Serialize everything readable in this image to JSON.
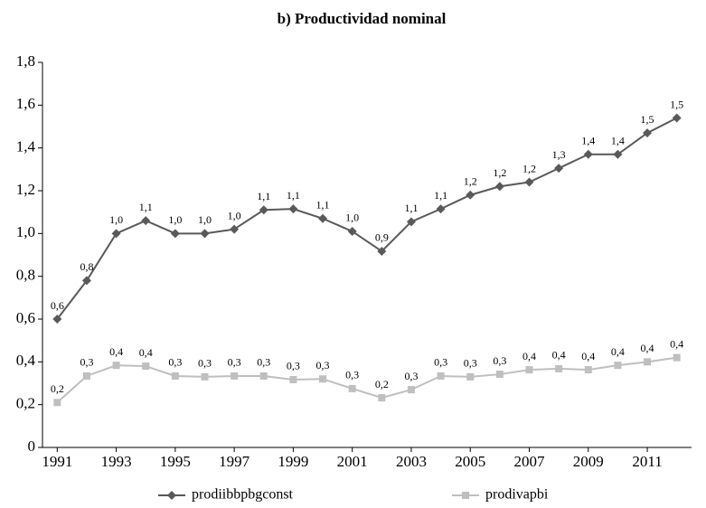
{
  "chart_data": {
    "type": "line",
    "title": "b) Productividad nominal",
    "x": [
      1991,
      1992,
      1993,
      1994,
      1995,
      1996,
      1997,
      1998,
      1999,
      2000,
      2001,
      2002,
      2003,
      2004,
      2005,
      2006,
      2007,
      2008,
      2009,
      2010,
      2011,
      2012
    ],
    "xlim": [
      1990.5,
      2012.5
    ],
    "xticks": [
      1991,
      1993,
      1995,
      1997,
      1999,
      2001,
      2003,
      2005,
      2007,
      2009,
      2011
    ],
    "ylim": [
      0,
      1.8
    ],
    "yticks": [
      0,
      {
        "value": 0.2,
        "label": "0,2"
      },
      {
        "value": 0.4,
        "label": "0,4"
      },
      {
        "value": 0.6,
        "label": "0,6"
      },
      {
        "value": 0.8,
        "label": "0,8"
      },
      {
        "value": 1.0,
        "label": "1,0"
      },
      {
        "value": 1.2,
        "label": "1,2"
      },
      {
        "value": 1.4,
        "label": "1,4"
      },
      {
        "value": 1.6,
        "label": "1,6"
      },
      {
        "value": 1.8,
        "label": "1,8"
      }
    ],
    "series": [
      {
        "name": "prodiibbpbgconst",
        "color": "#595959",
        "marker": "diamond",
        "values": [
          0.6,
          0.78,
          1.0,
          1.06,
          1.0,
          1.0,
          1.02,
          1.11,
          1.115,
          1.07,
          1.01,
          0.917,
          1.055,
          1.115,
          1.18,
          1.22,
          1.24,
          1.305,
          1.37,
          1.37,
          1.47,
          1.54
        ],
        "value_labels": [
          "0,6",
          "0,8",
          "1,0",
          "1,1",
          "1,0",
          "1,0",
          "1,0",
          "1,1",
          "1,1",
          "1,1",
          "1,0",
          "0,9",
          "1,1",
          "1,1",
          "1,2",
          "1,2",
          "1,2",
          "1,3",
          "1,4",
          "1,4",
          "1,5",
          "1,5"
        ]
      },
      {
        "name": "prodivapbi",
        "color": "#bfbfbf",
        "marker": "square",
        "values": [
          0.21,
          0.334,
          0.384,
          0.38,
          0.334,
          0.33,
          0.334,
          0.334,
          0.317,
          0.32,
          0.275,
          0.232,
          0.27,
          0.334,
          0.33,
          0.342,
          0.363,
          0.368,
          0.363,
          0.384,
          0.4,
          0.42
        ],
        "value_labels": [
          "0,2",
          "0,3",
          "0,4",
          "0,4",
          "0,3",
          "0,3",
          "0,3",
          "0,3",
          "0,3",
          "0,3",
          "0,3",
          "0,2",
          "0,3",
          "0,3",
          "0,3",
          "0,3",
          "0,4",
          "0,4",
          "0,4",
          "0,4",
          "0,4",
          "0,4"
        ]
      }
    ]
  }
}
